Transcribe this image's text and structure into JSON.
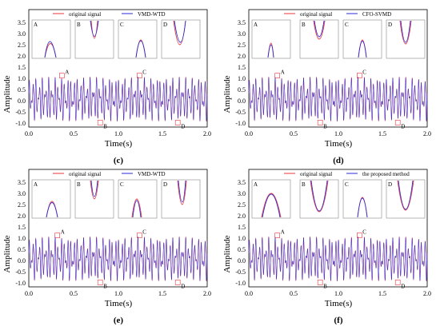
{
  "figure": {
    "panels": [
      {
        "label": "(c)",
        "legend": {
          "original": "original signal",
          "method": "VMD-WTD"
        },
        "inset_labels": [
          "A",
          "B",
          "C",
          "D"
        ]
      },
      {
        "label": "(d)",
        "legend": {
          "original": "original signal",
          "method": "CFO-SVMD"
        },
        "inset_labels": [
          "A",
          "B",
          "C",
          "D"
        ]
      },
      {
        "label": "(e)",
        "legend": {
          "original": "original signal",
          "method": "VMD-WTD"
        },
        "inset_labels": [
          "A",
          "B",
          "C",
          "D"
        ]
      },
      {
        "label": "(f)",
        "legend": {
          "original": "original signal",
          "method": "the proposed method"
        },
        "inset_labels": [
          "A",
          "B",
          "C",
          "D"
        ]
      }
    ]
  },
  "colors": {
    "original": "#e8333a",
    "method": "#2a2ad8",
    "axis": "#000000",
    "box": "#888888"
  },
  "chart_data": [
    {
      "type": "line",
      "xlabel": "Time(s)",
      "ylabel": "Amplitude",
      "xlim": [
        0,
        2.0
      ],
      "ylim": [
        -1.25,
        4.0
      ],
      "xticks": [
        0.0,
        0.5,
        1.0,
        1.5,
        2.0
      ],
      "xtick_labels": [
        "0.0",
        "0.5",
        "1.0",
        "1.5",
        "2.0"
      ],
      "yticks": [
        -1.0,
        -0.5,
        0.0,
        0.5,
        1.0,
        1.5,
        2.0,
        2.5,
        3.0,
        3.5
      ],
      "ytick_labels": [
        "-1.0",
        "-0.5",
        "0.0",
        "0.5",
        "1.0",
        "1.5",
        "2.0",
        "2.5",
        "3.0",
        "3.5"
      ],
      "series": [
        {
          "name": "original signal"
        },
        {
          "name": "VMD-WTD"
        }
      ],
      "signal_range": [
        -1.0,
        1.0
      ],
      "zoom_labels": [
        {
          "text": "A",
          "x": 0.37,
          "y": 1.05
        },
        {
          "text": "B",
          "x": 0.8,
          "y": -1.05
        },
        {
          "text": "C",
          "x": 1.24,
          "y": 1.05
        },
        {
          "text": "D",
          "x": 1.67,
          "y": -1.05
        }
      ]
    },
    {
      "type": "line",
      "xlabel": "Time(s)",
      "ylabel": "Amplitude",
      "xlim": [
        0,
        2.0
      ],
      "ylim": [
        -1.25,
        4.0
      ],
      "xticks": [
        0.0,
        0.5,
        1.0,
        1.5,
        2.0
      ],
      "xtick_labels": [
        "0.0",
        "0.5",
        "1.0",
        "1.5",
        "2.0"
      ],
      "yticks": [
        -1.0,
        -0.5,
        0.0,
        0.5,
        1.0,
        1.5,
        2.0,
        2.5,
        3.0,
        3.5
      ],
      "ytick_labels": [
        "-1.0",
        "-0.5",
        "0.0",
        "0.5",
        "1.0",
        "1.5",
        "2.0",
        "2.5",
        "3.0",
        "3.5"
      ],
      "series": [
        {
          "name": "original signal"
        },
        {
          "name": "CFO-SVMD"
        }
      ],
      "signal_range": [
        -1.0,
        1.0
      ],
      "zoom_labels": [
        {
          "text": "A",
          "x": 0.32,
          "y": 1.05
        },
        {
          "text": "B",
          "x": 0.8,
          "y": -1.05
        },
        {
          "text": "C",
          "x": 1.24,
          "y": 1.05
        },
        {
          "text": "D",
          "x": 1.67,
          "y": -1.05
        }
      ]
    },
    {
      "type": "line",
      "xlabel": "Time(s)",
      "ylabel": "Amplitude",
      "xlim": [
        0,
        2.0
      ],
      "ylim": [
        -1.25,
        4.0
      ],
      "xticks": [
        0.0,
        0.5,
        1.0,
        1.5,
        2.0
      ],
      "xtick_labels": [
        "0.0",
        "0.5",
        "1.0",
        "1.5",
        "2.0"
      ],
      "yticks": [
        -1.0,
        -0.5,
        0.0,
        0.5,
        1.0,
        1.5,
        2.0,
        2.5,
        3.0,
        3.5
      ],
      "ytick_labels": [
        "-1.0",
        "-0.5",
        "0.0",
        "0.5",
        "1.0",
        "1.5",
        "2.0",
        "2.5",
        "3.0",
        "3.5"
      ],
      "series": [
        {
          "name": "original signal"
        },
        {
          "name": "VMD-WTD"
        }
      ],
      "signal_range": [
        -1.0,
        1.0
      ],
      "zoom_labels": [
        {
          "text": "A",
          "x": 0.32,
          "y": 1.05
        },
        {
          "text": "B",
          "x": 0.8,
          "y": -1.05
        },
        {
          "text": "C",
          "x": 1.24,
          "y": 1.05
        },
        {
          "text": "D",
          "x": 1.67,
          "y": -1.05
        }
      ]
    },
    {
      "type": "line",
      "xlabel": "Time(s)",
      "ylabel": "Amplitude",
      "xlim": [
        0,
        2.0
      ],
      "ylim": [
        -1.25,
        4.0
      ],
      "xticks": [
        0.0,
        0.5,
        1.0,
        1.5,
        2.0
      ],
      "xtick_labels": [
        "0.0",
        "0.5",
        "1.0",
        "1.5",
        "2.0"
      ],
      "yticks": [
        -1.0,
        -0.5,
        0.0,
        0.5,
        1.0,
        1.5,
        2.0,
        2.5,
        3.0,
        3.5
      ],
      "ytick_labels": [
        "-1.0",
        "-0.5",
        "0.0",
        "0.5",
        "1.0",
        "1.5",
        "2.0",
        "2.5",
        "3.0",
        "3.5"
      ],
      "series": [
        {
          "name": "original signal"
        },
        {
          "name": "the proposed method"
        }
      ],
      "signal_range": [
        -1.0,
        1.0
      ],
      "zoom_labels": [
        {
          "text": "A",
          "x": 0.32,
          "y": 1.05
        },
        {
          "text": "B",
          "x": 0.8,
          "y": -1.05
        },
        {
          "text": "C",
          "x": 1.24,
          "y": 1.05
        },
        {
          "text": "D",
          "x": 1.67,
          "y": -1.05
        }
      ]
    }
  ]
}
